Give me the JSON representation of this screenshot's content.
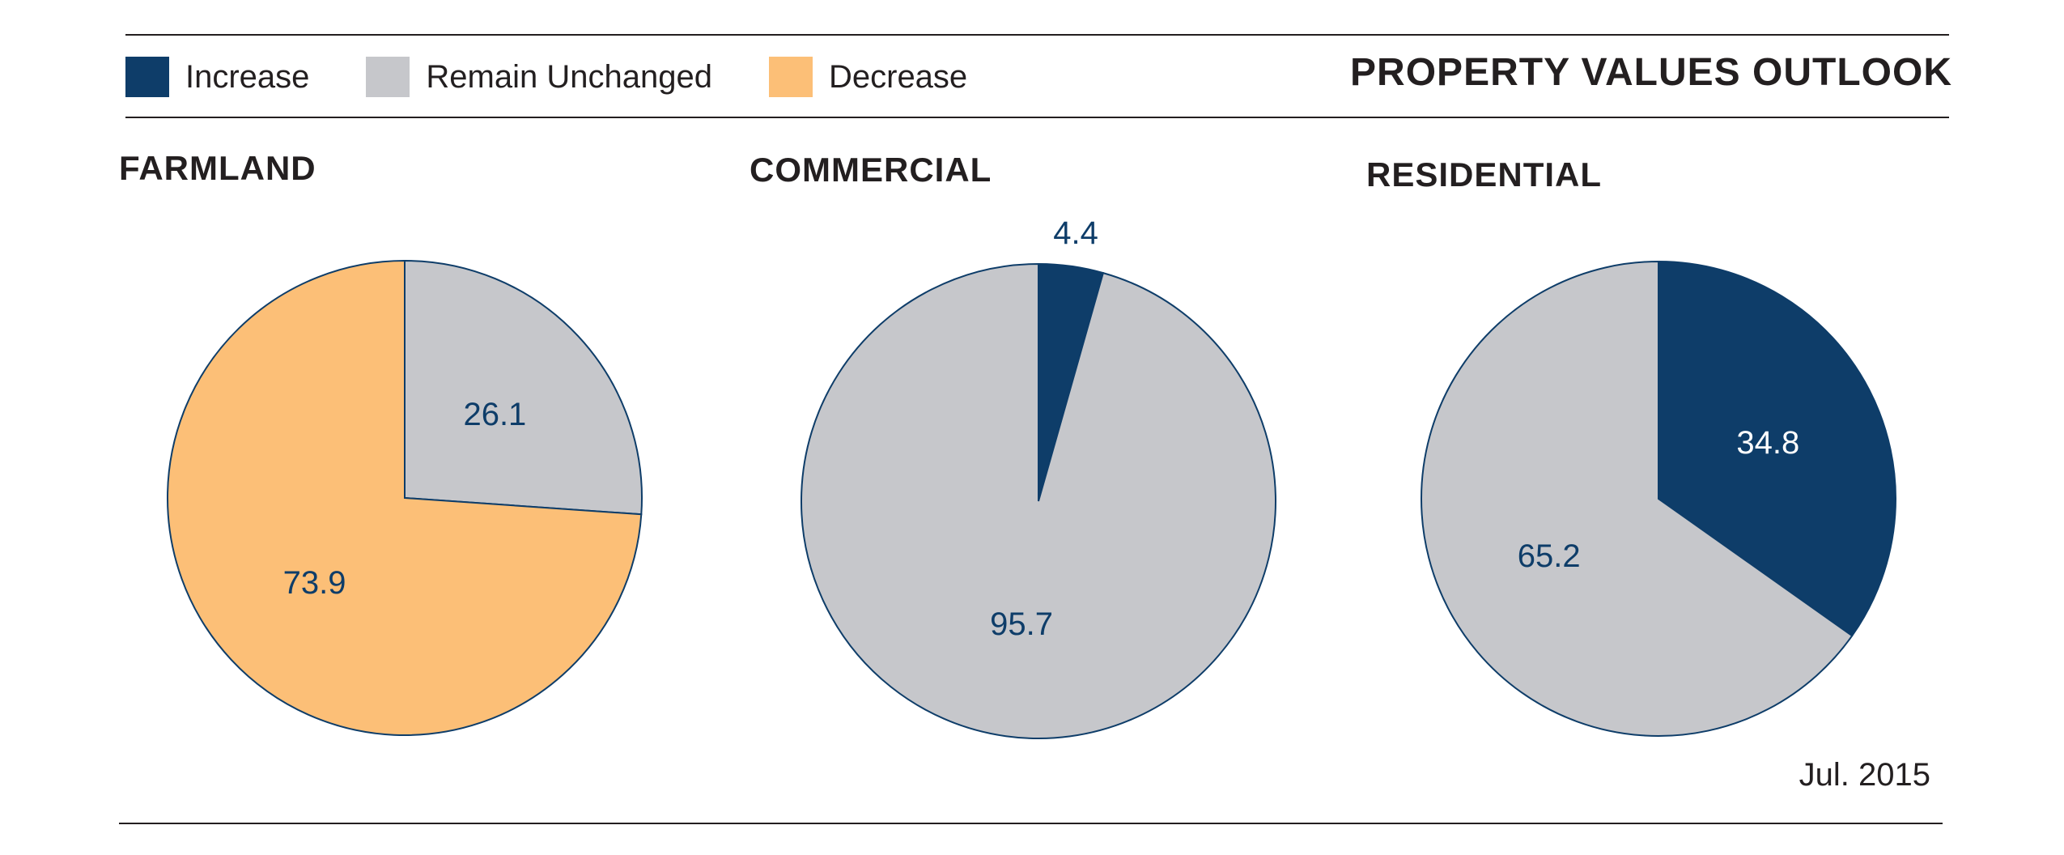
{
  "title": "PROPERTY VALUES OUTLOOK",
  "date": "Jul. 2015",
  "legend": [
    {
      "label": "Increase",
      "color": "#0e3d69"
    },
    {
      "label": "Remain Unchanged",
      "color": "#c6c7cb"
    },
    {
      "label": "Decrease",
      "color": "#fcbf77"
    }
  ],
  "chart_data": [
    {
      "type": "pie",
      "title": "FARMLAND",
      "slices": [
        {
          "category": "Remain Unchanged",
          "value": 26.1,
          "label": "26.1",
          "color": "#c6c7cb",
          "label_color": "#0e3d69"
        },
        {
          "category": "Decrease",
          "value": 73.9,
          "label": "73.9",
          "color": "#fcbf77",
          "label_color": "#0e3d69"
        }
      ]
    },
    {
      "type": "pie",
      "title": "COMMERCIAL",
      "slices": [
        {
          "category": "Increase",
          "value": 4.4,
          "label": "4.4",
          "color": "#0e3d69",
          "label_color": "#0e3d69",
          "label_outside": true
        },
        {
          "category": "Remain Unchanged",
          "value": 95.7,
          "label": "95.7",
          "color": "#c6c7cb",
          "label_color": "#0e3d69"
        }
      ]
    },
    {
      "type": "pie",
      "title": "RESIDENTIAL",
      "slices": [
        {
          "category": "Increase",
          "value": 34.8,
          "label": "34.8",
          "color": "#0e3d69",
          "label_color": "#ffffff"
        },
        {
          "category": "Remain Unchanged",
          "value": 65.2,
          "label": "65.2",
          "color": "#c6c7cb",
          "label_color": "#0e3d69"
        }
      ]
    }
  ]
}
